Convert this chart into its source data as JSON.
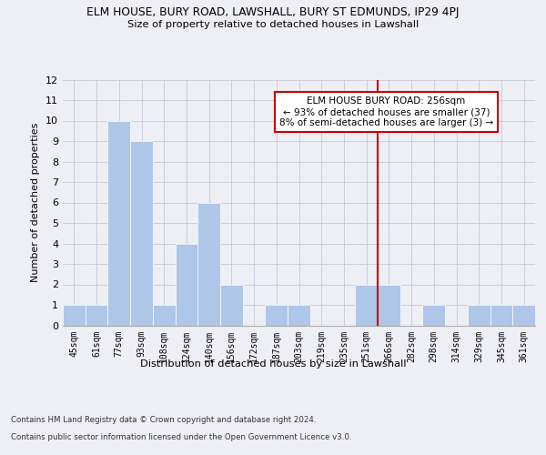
{
  "title_line1": "ELM HOUSE, BURY ROAD, LAWSHALL, BURY ST EDMUNDS, IP29 4PJ",
  "title_line2": "Size of property relative to detached houses in Lawshall",
  "xlabel": "Distribution of detached houses by size in Lawshall",
  "ylabel": "Number of detached properties",
  "bin_labels": [
    "45sqm",
    "61sqm",
    "77sqm",
    "93sqm",
    "108sqm",
    "124sqm",
    "140sqm",
    "156sqm",
    "172sqm",
    "187sqm",
    "203sqm",
    "219sqm",
    "235sqm",
    "251sqm",
    "266sqm",
    "282sqm",
    "298sqm",
    "314sqm",
    "329sqm",
    "345sqm",
    "361sqm"
  ],
  "bar_heights": [
    1,
    1,
    10,
    9,
    1,
    4,
    6,
    2,
    0,
    1,
    1,
    0,
    0,
    2,
    2,
    0,
    1,
    0,
    1,
    1,
    1
  ],
  "bar_color": "#aec6e8",
  "bar_edge_color": "#aec6e8",
  "grid_color": "#c8c8d8",
  "vline_x_index": 13.5,
  "vline_color": "#cc0000",
  "annotation_text": "ELM HOUSE BURY ROAD: 256sqm\n← 93% of detached houses are smaller (37)\n8% of semi-detached houses are larger (3) →",
  "annotation_box_color": "#ffffff",
  "annotation_box_edge_color": "#cc0000",
  "ylim": [
    0,
    12
  ],
  "yticks": [
    0,
    1,
    2,
    3,
    4,
    5,
    6,
    7,
    8,
    9,
    10,
    11,
    12
  ],
  "footer_line1": "Contains HM Land Registry data © Crown copyright and database right 2024.",
  "footer_line2": "Contains public sector information licensed under the Open Government Licence v3.0.",
  "bg_color": "#eeeef5"
}
